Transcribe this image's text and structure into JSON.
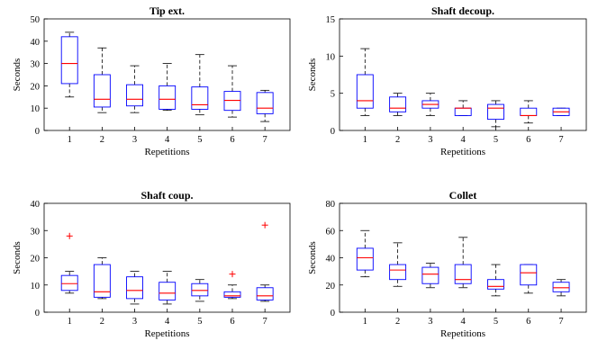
{
  "chart_data": [
    {
      "type": "box",
      "title": "Tip ext.",
      "xlabel": "Repetitions",
      "ylabel": "Seconds",
      "ylim": [
        0,
        50
      ],
      "yticks": [
        0,
        10,
        20,
        30,
        40,
        50
      ],
      "categories": [
        "1",
        "2",
        "3",
        "4",
        "5",
        "6",
        "7"
      ],
      "boxes": [
        {
          "min": 15,
          "q1": 21,
          "median": 30,
          "q3": 42,
          "max": 44,
          "outliers": []
        },
        {
          "min": 8,
          "q1": 10.5,
          "median": 14,
          "q3": 25,
          "max": 37,
          "outliers": []
        },
        {
          "min": 8,
          "q1": 11,
          "median": 14,
          "q3": 20.5,
          "max": 29,
          "outliers": []
        },
        {
          "min": 9,
          "q1": 9.5,
          "median": 14,
          "q3": 20,
          "max": 30,
          "outliers": []
        },
        {
          "min": 7,
          "q1": 9.5,
          "median": 11.5,
          "q3": 19.5,
          "max": 34,
          "outliers": []
        },
        {
          "min": 6,
          "q1": 9,
          "median": 13.5,
          "q3": 17.5,
          "max": 29,
          "outliers": []
        },
        {
          "min": 4,
          "q1": 7.5,
          "median": 10,
          "q3": 17,
          "max": 18,
          "outliers": []
        }
      ]
    },
    {
      "type": "box",
      "title": "Shaft decoup.",
      "xlabel": "Repetitions",
      "ylabel": "Seconds",
      "ylim": [
        0,
        15
      ],
      "yticks": [
        0,
        5,
        10,
        15
      ],
      "categories": [
        "1",
        "2",
        "3",
        "4",
        "5",
        "6",
        "7"
      ],
      "boxes": [
        {
          "min": 2,
          "q1": 3,
          "median": 4,
          "q3": 7.5,
          "max": 11,
          "outliers": []
        },
        {
          "min": 2,
          "q1": 2.5,
          "median": 3,
          "q3": 4.5,
          "max": 5,
          "outliers": []
        },
        {
          "min": 2,
          "q1": 3,
          "median": 3.5,
          "q3": 4,
          "max": 5,
          "outliers": []
        },
        {
          "min": 2,
          "q1": 2,
          "median": 3,
          "q3": 3,
          "max": 4,
          "outliers": []
        },
        {
          "min": 0.5,
          "q1": 1.5,
          "median": 3,
          "q3": 3.5,
          "max": 4,
          "outliers": []
        },
        {
          "min": 1,
          "q1": 2,
          "median": 2,
          "q3": 3,
          "max": 4,
          "outliers": []
        },
        {
          "min": 2,
          "q1": 2,
          "median": 2.5,
          "q3": 3,
          "max": 3,
          "outliers": []
        }
      ]
    },
    {
      "type": "box",
      "title": "Shaft coup.",
      "xlabel": "Repetitions",
      "ylabel": "Seconds",
      "ylim": [
        0,
        40
      ],
      "yticks": [
        0,
        10,
        20,
        30,
        40
      ],
      "categories": [
        "1",
        "2",
        "3",
        "4",
        "5",
        "6",
        "7"
      ],
      "boxes": [
        {
          "min": 7,
          "q1": 8,
          "median": 10.5,
          "q3": 13.5,
          "max": 15,
          "outliers": [
            28
          ]
        },
        {
          "min": 5,
          "q1": 5.5,
          "median": 7.5,
          "q3": 17.5,
          "max": 20,
          "outliers": []
        },
        {
          "min": 3,
          "q1": 5,
          "median": 8,
          "q3": 13,
          "max": 15,
          "outliers": []
        },
        {
          "min": 3,
          "q1": 4.5,
          "median": 7,
          "q3": 11,
          "max": 15,
          "outliers": []
        },
        {
          "min": 4,
          "q1": 6,
          "median": 8,
          "q3": 10.5,
          "max": 12,
          "outliers": []
        },
        {
          "min": 5,
          "q1": 5.5,
          "median": 6,
          "q3": 7.5,
          "max": 10,
          "outliers": [
            14
          ]
        },
        {
          "min": 4,
          "q1": 4.5,
          "median": 6,
          "q3": 9,
          "max": 10,
          "outliers": [
            32
          ]
        }
      ]
    },
    {
      "type": "box",
      "title": "Collet",
      "xlabel": "Repetitions",
      "ylabel": "Seconds",
      "ylim": [
        0,
        80
      ],
      "yticks": [
        0,
        20,
        40,
        60,
        80
      ],
      "categories": [
        "1",
        "2",
        "3",
        "4",
        "5",
        "6",
        "7"
      ],
      "boxes": [
        {
          "min": 26,
          "q1": 31,
          "median": 40,
          "q3": 47,
          "max": 60,
          "outliers": []
        },
        {
          "min": 19,
          "q1": 24,
          "median": 31,
          "q3": 35,
          "max": 51,
          "outliers": []
        },
        {
          "min": 18,
          "q1": 21,
          "median": 28,
          "q3": 33,
          "max": 36,
          "outliers": []
        },
        {
          "min": 18,
          "q1": 21,
          "median": 24,
          "q3": 35,
          "max": 55,
          "outliers": []
        },
        {
          "min": 12,
          "q1": 17,
          "median": 19,
          "q3": 24,
          "max": 35,
          "outliers": []
        },
        {
          "min": 14,
          "q1": 20,
          "median": 29,
          "q3": 35,
          "max": 35,
          "outliers": []
        },
        {
          "min": 12,
          "q1": 15,
          "median": 18,
          "q3": 22,
          "max": 24,
          "outliers": []
        }
      ]
    }
  ],
  "colors": {
    "box": "#0000ff",
    "median": "#ff0000",
    "whisker": "#000000",
    "outlier": "#ff0000",
    "axis": "#000000"
  }
}
